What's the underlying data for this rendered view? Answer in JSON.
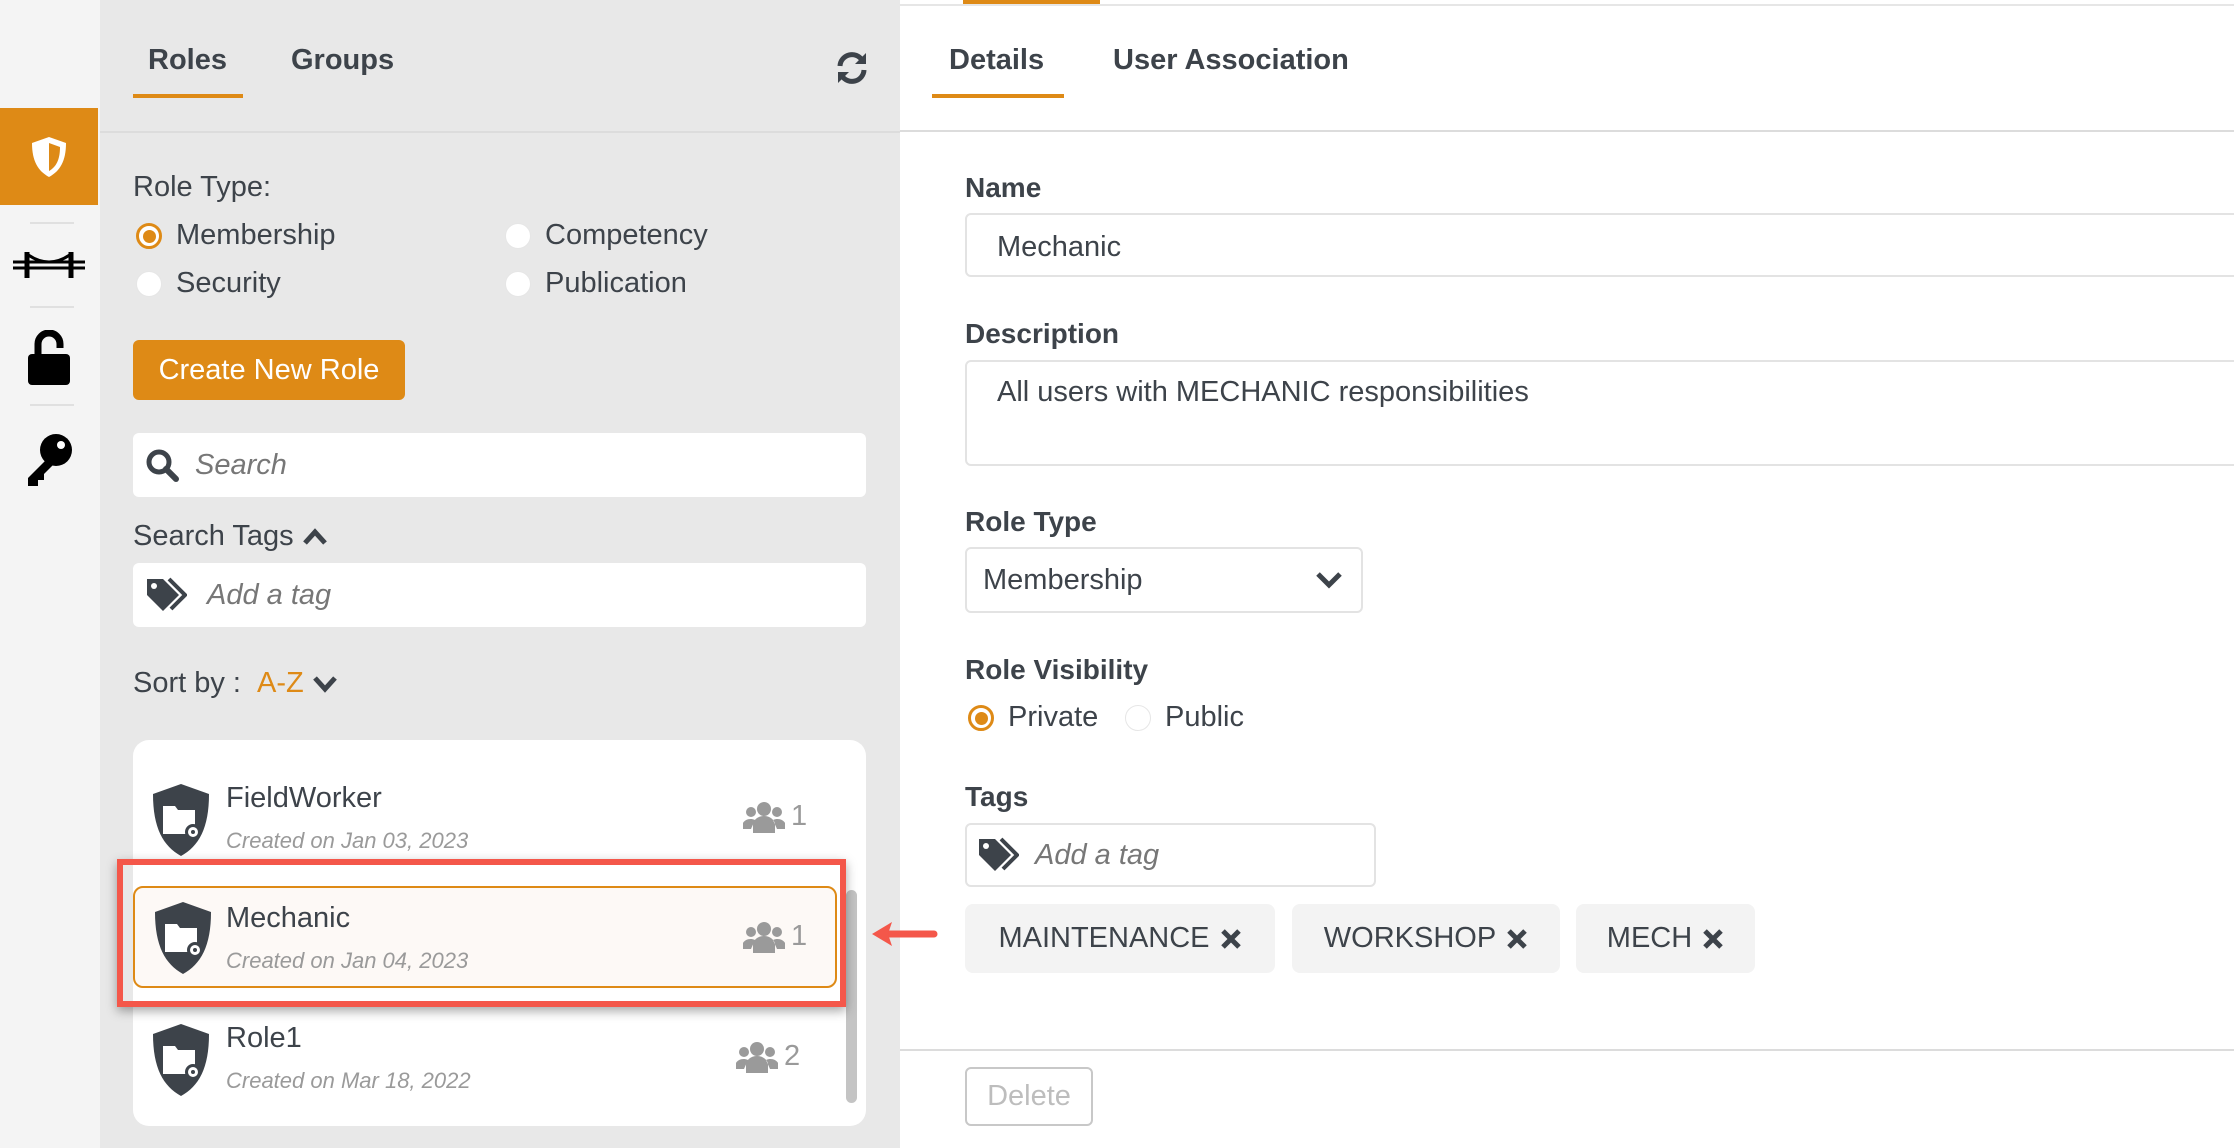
{
  "sidebar": {
    "items": [
      {
        "icon": "shield-icon",
        "active": true
      },
      {
        "icon": "bridge-icon"
      },
      {
        "icon": "unlock-icon"
      },
      {
        "icon": "key-icon"
      }
    ]
  },
  "left": {
    "tabs": [
      {
        "label": "Roles",
        "active": true
      },
      {
        "label": "Groups"
      }
    ],
    "refresh_icon": "refresh-icon",
    "role_type_label": "Role Type:",
    "role_types": [
      {
        "label": "Membership",
        "selected": true
      },
      {
        "label": "Competency"
      },
      {
        "label": "Security"
      },
      {
        "label": "Publication"
      }
    ],
    "create_button": "Create New Role",
    "search_placeholder": "Search",
    "search_tags_label": "Search Tags",
    "tag_placeholder": "Add a tag",
    "sort_label": "Sort by : ",
    "sort_value": "A-Z",
    "roles": [
      {
        "name": "FieldWorker",
        "created": "Created on Jan 03, 2023",
        "count": "1"
      },
      {
        "name": "Mechanic",
        "created": "Created on Jan 04, 2023",
        "count": "1",
        "selected": true
      },
      {
        "name": "Role1",
        "created": "Created on Mar 18, 2022",
        "count": "2"
      }
    ]
  },
  "right": {
    "tabs": [
      {
        "label": "Details",
        "active": true
      },
      {
        "label": "User Association"
      }
    ],
    "name_label": "Name",
    "name_value": "Mechanic",
    "description_label": "Description",
    "description_value": "All users with MECHANIC responsibilities",
    "role_type_label": "Role Type",
    "role_type_value": "Membership",
    "visibility_label": "Role Visibility",
    "visibility": [
      {
        "label": "Private",
        "selected": true
      },
      {
        "label": "Public"
      }
    ],
    "tags_label": "Tags",
    "tag_placeholder": "Add a tag",
    "tags": [
      "MAINTENANCE",
      "WORKSHOP",
      "MECH"
    ],
    "delete_button": "Delete"
  },
  "colors": {
    "accent": "#de8a16",
    "highlight": "#f4574a"
  }
}
